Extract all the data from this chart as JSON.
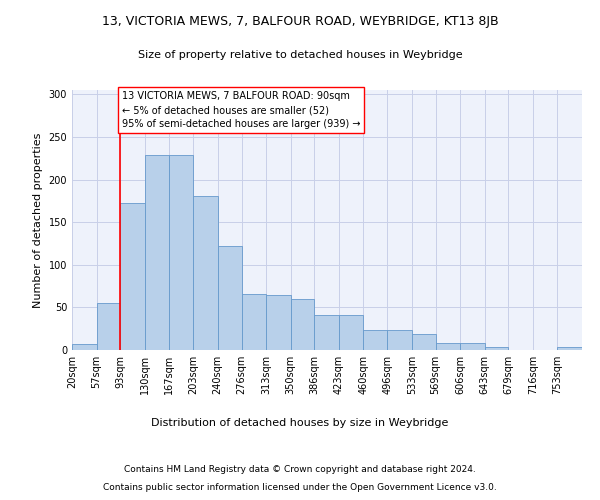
{
  "title": "13, VICTORIA MEWS, 7, BALFOUR ROAD, WEYBRIDGE, KT13 8JB",
  "subtitle": "Size of property relative to detached houses in Weybridge",
  "xlabel": "Distribution of detached houses by size in Weybridge",
  "ylabel": "Number of detached properties",
  "bar_color": "#b8d0ea",
  "bar_edge_color": "#6699cc",
  "background_color": "#eef2fb",
  "grid_color": "#c8cfe8",
  "vline_x": 93,
  "vline_color": "red",
  "annotation_text": "13 VICTORIA MEWS, 7 BALFOUR ROAD: 90sqm\n← 5% of detached houses are smaller (52)\n95% of semi-detached houses are larger (939) →",
  "annotation_box_color": "white",
  "annotation_box_edge": "red",
  "categories": [
    "20sqm",
    "57sqm",
    "93sqm",
    "130sqm",
    "167sqm",
    "203sqm",
    "240sqm",
    "276sqm",
    "313sqm",
    "350sqm",
    "386sqm",
    "423sqm",
    "460sqm",
    "496sqm",
    "533sqm",
    "569sqm",
    "606sqm",
    "643sqm",
    "679sqm",
    "716sqm",
    "753sqm"
  ],
  "bin_edges": [
    20,
    57,
    93,
    130,
    167,
    203,
    240,
    276,
    313,
    350,
    386,
    423,
    460,
    496,
    533,
    569,
    606,
    643,
    679,
    716,
    753,
    790
  ],
  "bar_heights": [
    7,
    55,
    173,
    229,
    229,
    181,
    122,
    66,
    65,
    60,
    41,
    41,
    24,
    24,
    19,
    8,
    8,
    4,
    0,
    0,
    4
  ],
  "ylim": [
    0,
    305
  ],
  "yticks": [
    0,
    50,
    100,
    150,
    200,
    250,
    300
  ],
  "footnote1": "Contains HM Land Registry data © Crown copyright and database right 2024.",
  "footnote2": "Contains public sector information licensed under the Open Government Licence v3.0."
}
